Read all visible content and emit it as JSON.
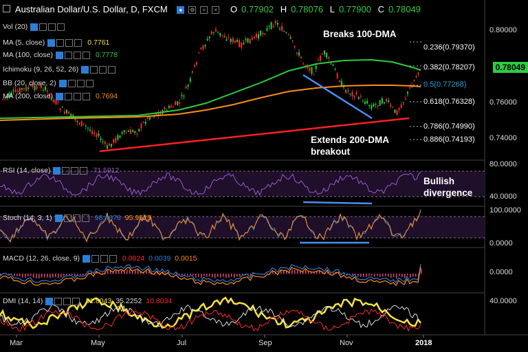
{
  "header": {
    "title": "Australian Dollar/U.S. Dollar, D, FXCM",
    "ohlc": [
      {
        "key": "O",
        "value": "0.77902"
      },
      {
        "key": "H",
        "value": "0.78076"
      },
      {
        "key": "L",
        "value": "0.77900"
      },
      {
        "key": "C",
        "value": "0.78049"
      }
    ]
  },
  "indicators": [
    {
      "name": "Vol (20)",
      "value": "",
      "color": "#dddddd"
    },
    {
      "name": "MA (5, close)",
      "value": "0.7761",
      "color": "#f5e342"
    },
    {
      "name": "MA (100, close)",
      "value": "0.7778",
      "color": "#2ecc40"
    },
    {
      "name": "Ichimoku (9, 26, 52, 26)",
      "value": "",
      "color": "#dddddd"
    },
    {
      "name": "BB (20, close, 2)",
      "value": "",
      "color": "#dddddd"
    },
    {
      "name": "MA (200, close)",
      "value": "0.7694",
      "color": "#ff8c1a"
    }
  ],
  "annotations": {
    "breaks": "Breaks 100-DMA",
    "extends1": "Extends 200-DMA",
    "extends2": "breakout",
    "bullish1": "Bullish",
    "bullish2": "divergence"
  },
  "fib_labels": [
    {
      "text": "0.236(0.79370)",
      "color": "#ffffff"
    },
    {
      "text": "0.382(0.78207)",
      "color": "#ffffff"
    },
    {
      "text": "0.5(0.77268)",
      "color": "#2a9fd6"
    },
    {
      "text": "0.618(0.76328)",
      "color": "#ffffff"
    },
    {
      "text": "0.786(0.74990)",
      "color": "#ffffff"
    },
    {
      "text": "0.886(0.74193)",
      "color": "#ffffff"
    }
  ],
  "price_axis": [
    "0.80000",
    "0.78049",
    "0.76000",
    "0.74000"
  ],
  "price_tag": "0.78049",
  "rsi": {
    "label": "RSI (14, close)",
    "value": "71.5912",
    "axis": [
      "80.0000",
      "40.0000"
    ]
  },
  "stoch": {
    "label": "Stoch (14, 3, 1)",
    "k": "98.4676",
    "d": "95.9525",
    "axis": [
      "100.0000",
      "0.0000"
    ]
  },
  "macd": {
    "label": "MACD (12, 26, close, 9)",
    "v1": "0.0024",
    "v2": "0.0039",
    "v3": "0.0015",
    "axis": [
      "0.0000"
    ]
  },
  "dmi": {
    "label": "DMI (14, 14)",
    "v1": "31.8043",
    "v2": "35.2252",
    "v3": "10.8034",
    "axis": [
      "40.0000"
    ]
  },
  "x_axis": [
    "Mar",
    "May",
    "Jul",
    "Sep",
    "Nov",
    "2018"
  ],
  "colors": {
    "up": "#2ecc40",
    "down": "#ff2a2a",
    "ma100": "#2ecc40",
    "ma200": "#ff8c1a",
    "trend_red": "#ff2020",
    "trend_blue": "#4a8ff0",
    "rsi": "#9b59d0"
  },
  "chart_data": {
    "type": "line",
    "title": "Australian Dollar/U.S. Dollar, D, FXCM",
    "x": [
      "Mar",
      "May",
      "Jul",
      "Sep",
      "Nov",
      "2018"
    ],
    "series": [
      {
        "name": "MA (100, close)",
        "values": [
          0.757,
          0.76,
          0.766,
          0.78,
          0.777,
          0.778
        ]
      },
      {
        "name": "MA (200, close)",
        "values": [
          0.756,
          0.757,
          0.759,
          0.767,
          0.769,
          0.769
        ]
      }
    ],
    "ylim": [
      0.735,
      0.81
    ]
  }
}
